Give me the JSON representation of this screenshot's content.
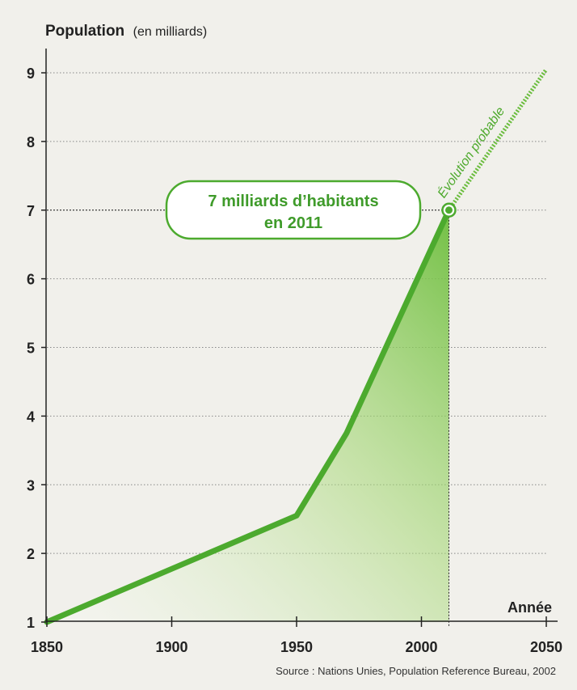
{
  "chart_data": {
    "type": "area",
    "title": "",
    "ylabel": "Population",
    "ylabel_unit": "(en milliards)",
    "xlabel": "Année",
    "xlim": [
      1850,
      2050
    ],
    "ylim": [
      1,
      9.5
    ],
    "x_ticks": [
      1850,
      1900,
      1950,
      2000,
      2050
    ],
    "y_ticks": [
      1,
      2,
      3,
      4,
      5,
      6,
      7,
      8,
      9
    ],
    "grid": "horizontal dotted",
    "series": [
      {
        "style": "solid",
        "x": [
          1850,
          1950,
          1970,
          2011
        ],
        "y": [
          1,
          2.55,
          3.75,
          7
        ]
      },
      {
        "style": "dotted",
        "x": [
          2011,
          2050
        ],
        "y": [
          7,
          9.05
        ]
      }
    ],
    "highlight": {
      "x": 2011,
      "y": 7
    },
    "annotation": {
      "line1": "7 milliards d’habitants",
      "line2": "en 2011"
    },
    "forecast_label": "Évolution probable",
    "source": "Source : Nations Unies, Population Reference Bureau, 2002",
    "colors": {
      "line": "#4caa2e",
      "area": "#7cc447",
      "marker_fill": "#4caa2e",
      "grid": "#888888"
    }
  }
}
